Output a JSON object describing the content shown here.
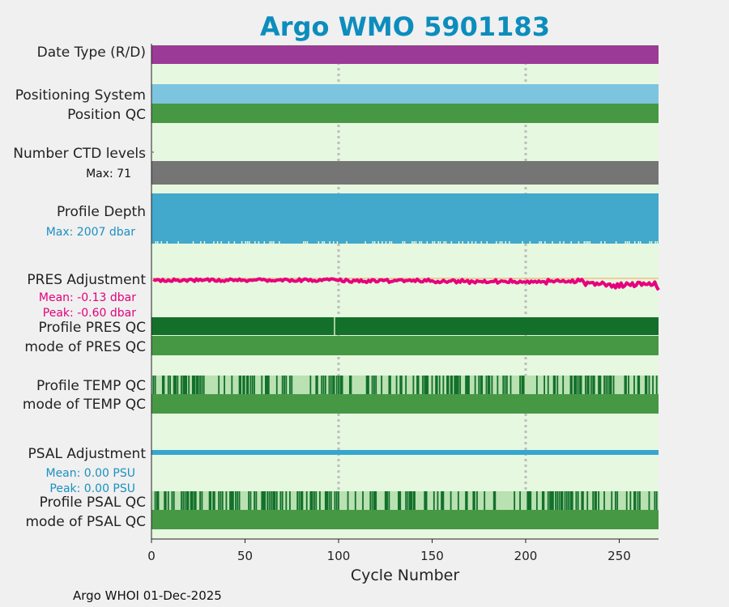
{
  "chart_data": {
    "type": "table",
    "title": "Argo WMO 5901183",
    "xlabel": "Cycle Number",
    "xlim": [
      0,
      271
    ],
    "xticks": [
      "0",
      "50",
      "100",
      "150",
      "200",
      "250"
    ],
    "gridlines_x": [
      100,
      200
    ],
    "footer": "Argo WHOI 01-Dec-2025",
    "rows": {
      "date_type": {
        "label": "Date Type (R/D)",
        "color": "#9b3b97"
      },
      "positioning_system": {
        "label": "Positioning System",
        "color": "#7dc4df"
      },
      "position_qc": {
        "label": "Position QC",
        "color": "#479845"
      },
      "ctd_levels": {
        "label": "Number CTD levels",
        "sub": "Max: 71",
        "max": 71,
        "color": "#757575"
      },
      "profile_depth": {
        "label": "Profile Depth",
        "sub": "Max: 2007 dbar",
        "max_dbar": 2007,
        "color": "#42a8cc"
      },
      "pres_adjustment": {
        "label": "PRES Adjustment",
        "mean": "Mean: -0.13 dbar",
        "peak": "Peak: -0.60 dbar",
        "mean_value": -0.13,
        "peak_value": -0.6,
        "color": "#e6007e"
      },
      "profile_pres_qc": {
        "label": "Profile PRES QC",
        "color": "#13702b"
      },
      "mode_pres_qc": {
        "label": "mode of PRES QC",
        "color": "#479845"
      },
      "profile_temp_qc": {
        "label": "Profile TEMP QC",
        "color": "#13702b"
      },
      "mode_temp_qc": {
        "label": "mode of TEMP QC",
        "color": "#479845"
      },
      "psal_adjustment": {
        "label": "PSAL Adjustment",
        "mean": "Mean: 0.00 PSU",
        "peak": "Peak: 0.00 PSU",
        "mean_value": 0.0,
        "peak_value": 0.0,
        "color": "#37a6cf"
      },
      "profile_psal_qc": {
        "label": "Profile PSAL QC",
        "color": "#13702b"
      },
      "mode_psal_qc": {
        "label": "mode of PSAL QC",
        "color": "#479845"
      }
    },
    "colors": {
      "background": "#e6f8e0",
      "title": "#0c8dbd",
      "sub_blue": "#1b90c0",
      "sub_pink": "#e3007d",
      "partial_qc": "#b9e1b1",
      "grid": "#bdbdbd"
    }
  }
}
